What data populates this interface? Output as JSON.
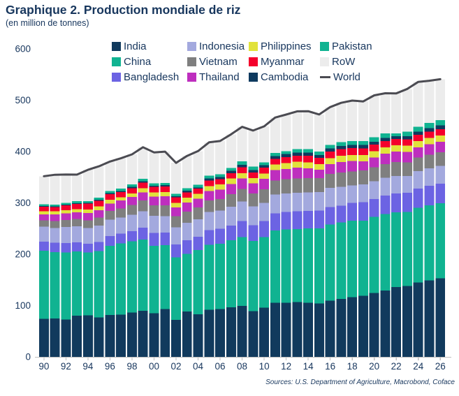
{
  "header": {
    "title": "Graphique 2. Production mondiale de riz",
    "subtitle": "(en million de tonnes)"
  },
  "footer": {
    "source": "Sources: U.S. Department of Agriculture, Macrobond, Coface"
  },
  "colors": {
    "text": "#17365D",
    "axis": "#BFBFBF",
    "india": "#113A5D",
    "china": "#10B391",
    "bangladesh": "#6C63E3",
    "indonesia": "#A3A9DE",
    "vietnam": "#7F7F7F",
    "thailand": "#BE2EBE",
    "philippines": "#E1E23B",
    "myanmar": "#F4002C",
    "cambodia": "#0E3A5F",
    "pakistan": "#10B391",
    "row": "#ECECEC",
    "world": "#4B4B52"
  },
  "chart_data": {
    "type": "bar",
    "subtype": "stacked-bars-with-line-overlay",
    "title": "Graphique 2. Production mondiale de riz",
    "ylabel": "en million de tonnes",
    "xlabel": "",
    "ylim": [
      0,
      600
    ],
    "yticks": [
      0,
      100,
      200,
      300,
      400,
      500,
      600
    ],
    "grid": false,
    "legend_position": "top",
    "years": [
      1990,
      1991,
      1992,
      1993,
      1994,
      1995,
      1996,
      1997,
      1998,
      1999,
      2000,
      2001,
      2002,
      2003,
      2004,
      2005,
      2006,
      2007,
      2008,
      2009,
      2010,
      2011,
      2012,
      2013,
      2014,
      2015,
      2016,
      2017,
      2018,
      2019,
      2020,
      2021,
      2022,
      2023,
      2024,
      2025,
      2026
    ],
    "x_tick_labels": [
      "90",
      "92",
      "94",
      "96",
      "98",
      "00",
      "02",
      "04",
      "06",
      "08",
      "10",
      "12",
      "14",
      "16",
      "18",
      "20",
      "22",
      "24",
      "26"
    ],
    "stack_order": [
      "india",
      "china",
      "bangladesh",
      "indonesia",
      "vietnam",
      "thailand",
      "philippines",
      "myanmar",
      "cambodia",
      "pakistan",
      "row"
    ],
    "series": [
      {
        "id": "india",
        "name": "India",
        "values": [
          74.3,
          74.7,
          72.9,
          80.3,
          81.2,
          77.0,
          81.7,
          82.5,
          86.1,
          89.7,
          85.0,
          93.3,
          71.8,
          88.5,
          83.1,
          91.8,
          93.4,
          96.7,
          99.2,
          89.1,
          96.0,
          105.3,
          105.2,
          106.7,
          105.5,
          104.4,
          109.7,
          112.8,
          116.5,
          118.9,
          124.4,
          129.5,
          135.8,
          137.8,
          145.0,
          149.0,
          153.0
        ]
      },
      {
        "id": "china",
        "name": "China",
        "values": [
          132.5,
          129.3,
          130.4,
          125.0,
          122.5,
          129.0,
          134.8,
          138.9,
          139.1,
          138.9,
          131.5,
          124.3,
          122.2,
          112.5,
          125.4,
          126.4,
          127.2,
          130.2,
          134.3,
          136.6,
          137.0,
          140.7,
          143.0,
          142.5,
          144.6,
          145.8,
          147.8,
          148.9,
          148.5,
          146.7,
          148.3,
          148.9,
          145.9,
          144.6,
          145.3,
          146.0,
          146.5
        ]
      },
      {
        "id": "bangladesh",
        "name": "Bangladesh",
        "values": [
          17.9,
          18.3,
          18.3,
          18.0,
          16.8,
          17.7,
          18.9,
          18.9,
          19.9,
          23.1,
          25.1,
          24.3,
          25.2,
          26.2,
          25.6,
          28.8,
          29.0,
          28.8,
          31.2,
          31.0,
          31.7,
          33.7,
          33.8,
          34.4,
          34.5,
          34.5,
          34.6,
          32.7,
          34.9,
          35.9,
          34.9,
          35.9,
          36.4,
          37.0,
          37.5,
          38.0,
          38.2
        ]
      },
      {
        "id": "indonesia",
        "name": "Indonesia",
        "values": [
          29.0,
          29.0,
          31.4,
          31.0,
          30.3,
          32.3,
          32.1,
          31.2,
          31.7,
          32.1,
          33.0,
          32.5,
          33.4,
          33.8,
          34.1,
          35.0,
          35.3,
          37.0,
          38.3,
          36.4,
          35.5,
          36.5,
          36.6,
          36.3,
          35.6,
          36.2,
          36.9,
          37.0,
          34.2,
          34.7,
          34.5,
          34.4,
          34.6,
          33.0,
          34.0,
          34.6,
          34.6
        ]
      },
      {
        "id": "vietnam",
        "name": "Vietnam",
        "values": [
          12.4,
          13.0,
          14.0,
          14.7,
          15.4,
          15.7,
          16.8,
          17.6,
          19.4,
          20.9,
          20.5,
          21.0,
          21.5,
          21.9,
          22.7,
          22.8,
          22.9,
          24.4,
          24.4,
          25.0,
          26.4,
          27.2,
          27.5,
          28.0,
          28.2,
          27.6,
          27.4,
          27.7,
          27.3,
          27.3,
          27.4,
          27.0,
          27.0,
          26.6,
          26.5,
          26.5,
          26.3
        ]
      },
      {
        "id": "thailand",
        "name": "Thailand",
        "values": [
          11.3,
          13.3,
          12.8,
          12.3,
          13.9,
          14.3,
          14.6,
          15.5,
          15.4,
          16.0,
          17.0,
          17.5,
          17.2,
          18.0,
          17.1,
          18.2,
          18.3,
          19.8,
          19.9,
          20.3,
          20.3,
          20.5,
          20.2,
          20.5,
          18.8,
          15.8,
          19.2,
          20.4,
          20.3,
          17.7,
          18.9,
          19.9,
          20.2,
          20.0,
          20.1,
          20.3,
          20.3
        ]
      },
      {
        "id": "philippines",
        "name": "Philippines",
        "values": [
          6.4,
          6.2,
          6.0,
          6.3,
          6.9,
          6.9,
          7.4,
          6.5,
          6.8,
          7.7,
          8.1,
          8.4,
          8.5,
          9.0,
          9.4,
          9.8,
          9.8,
          10.5,
          10.8,
          9.8,
          10.5,
          10.7,
          11.4,
          11.9,
          12.0,
          11.0,
          11.7,
          12.2,
          11.7,
          11.9,
          12.4,
          12.5,
          12.4,
          12.7,
          12.0,
          12.3,
          12.4
        ]
      },
      {
        "id": "myanmar",
        "name": "Myanmar",
        "values": [
          8.6,
          8.2,
          9.3,
          10.4,
          11.6,
          11.0,
          10.7,
          10.0,
          10.5,
          10.9,
          10.8,
          10.8,
          10.8,
          10.7,
          10.2,
          11.0,
          10.6,
          10.7,
          11.2,
          11.2,
          11.1,
          10.8,
          11.7,
          11.7,
          12.6,
          12.2,
          12.5,
          13.2,
          13.2,
          13.3,
          12.6,
          12.4,
          12.0,
          12.0,
          12.0,
          12.1,
          12.1
        ]
      },
      {
        "id": "cambodia",
        "name": "Cambodia",
        "values": [
          1.6,
          1.4,
          1.5,
          1.5,
          1.4,
          2.2,
          2.1,
          2.2,
          2.4,
          2.6,
          2.6,
          2.7,
          2.4,
          3.0,
          2.6,
          3.8,
          4.0,
          4.3,
          4.6,
          4.8,
          5.2,
          5.5,
          5.8,
          5.9,
          5.9,
          5.7,
          6.1,
          6.3,
          6.5,
          6.6,
          5.9,
          5.8,
          5.9,
          6.1,
          6.2,
          7.0,
          7.3
        ]
      },
      {
        "id": "pakistan",
        "name": "Pakistan",
        "values": [
          3.3,
          3.3,
          3.1,
          4.0,
          3.4,
          4.0,
          4.3,
          4.3,
          4.7,
          5.2,
          4.8,
          3.9,
          4.5,
          4.8,
          5.0,
          5.5,
          5.4,
          5.6,
          6.9,
          6.8,
          5.0,
          6.2,
          5.8,
          6.8,
          7.0,
          6.8,
          6.8,
          7.5,
          7.3,
          7.4,
          8.4,
          9.3,
          5.5,
          9.0,
          9.9,
          10.0,
          10.3
        ]
      },
      {
        "id": "row",
        "name": "RoW",
        "values": [
          54.7,
          58.1,
          55.6,
          51.6,
          61.1,
          61.2,
          57.1,
          59.3,
          58.5,
          61.3,
          59.9,
          61.2,
          60.4,
          63.2,
          65.7,
          64.9,
          64.7,
          65.6,
          67.3,
          69.9,
          70.4,
          69.2,
          71.1,
          73.7,
          74.0,
          72.2,
          74.0,
          76.3,
          78.9,
          77.3,
          81.8,
          78.0,
          77.6,
          83.3,
          87.3,
          82.2,
          80.0
        ]
      }
    ],
    "line": {
      "id": "world",
      "name": "World",
      "values": [
        352.0,
        354.8,
        355.3,
        355.1,
        364.5,
        371.3,
        380.5,
        386.9,
        394.5,
        408.4,
        398.3,
        399.9,
        377.9,
        391.6,
        400.9,
        418.0,
        420.6,
        433.6,
        448.1,
        440.9,
        449.1,
        466.3,
        472.1,
        478.4,
        478.7,
        472.2,
        486.7,
        495.0,
        499.3,
        497.7,
        509.5,
        513.6,
        513.3,
        522.1,
        535.8,
        538.0,
        541.0
      ]
    },
    "legend": [
      {
        "id": "india",
        "label": "India",
        "swatch": "box"
      },
      {
        "id": "indonesia",
        "label": "Indonesia",
        "swatch": "box"
      },
      {
        "id": "philippines",
        "label": "Philippines",
        "swatch": "box"
      },
      {
        "id": "pakistan",
        "label": "Pakistan",
        "swatch": "box"
      },
      {
        "id": "china",
        "label": "China",
        "swatch": "box"
      },
      {
        "id": "vietnam",
        "label": "Vietnam",
        "swatch": "box"
      },
      {
        "id": "myanmar",
        "label": "Myanmar",
        "swatch": "box"
      },
      {
        "id": "row",
        "label": "RoW",
        "swatch": "box"
      },
      {
        "id": "bangladesh",
        "label": "Bangladesh",
        "swatch": "box"
      },
      {
        "id": "thailand",
        "label": "Thailand",
        "swatch": "box"
      },
      {
        "id": "cambodia",
        "label": "Cambodia",
        "swatch": "box"
      },
      {
        "id": "world",
        "label": "World",
        "swatch": "line"
      }
    ]
  }
}
